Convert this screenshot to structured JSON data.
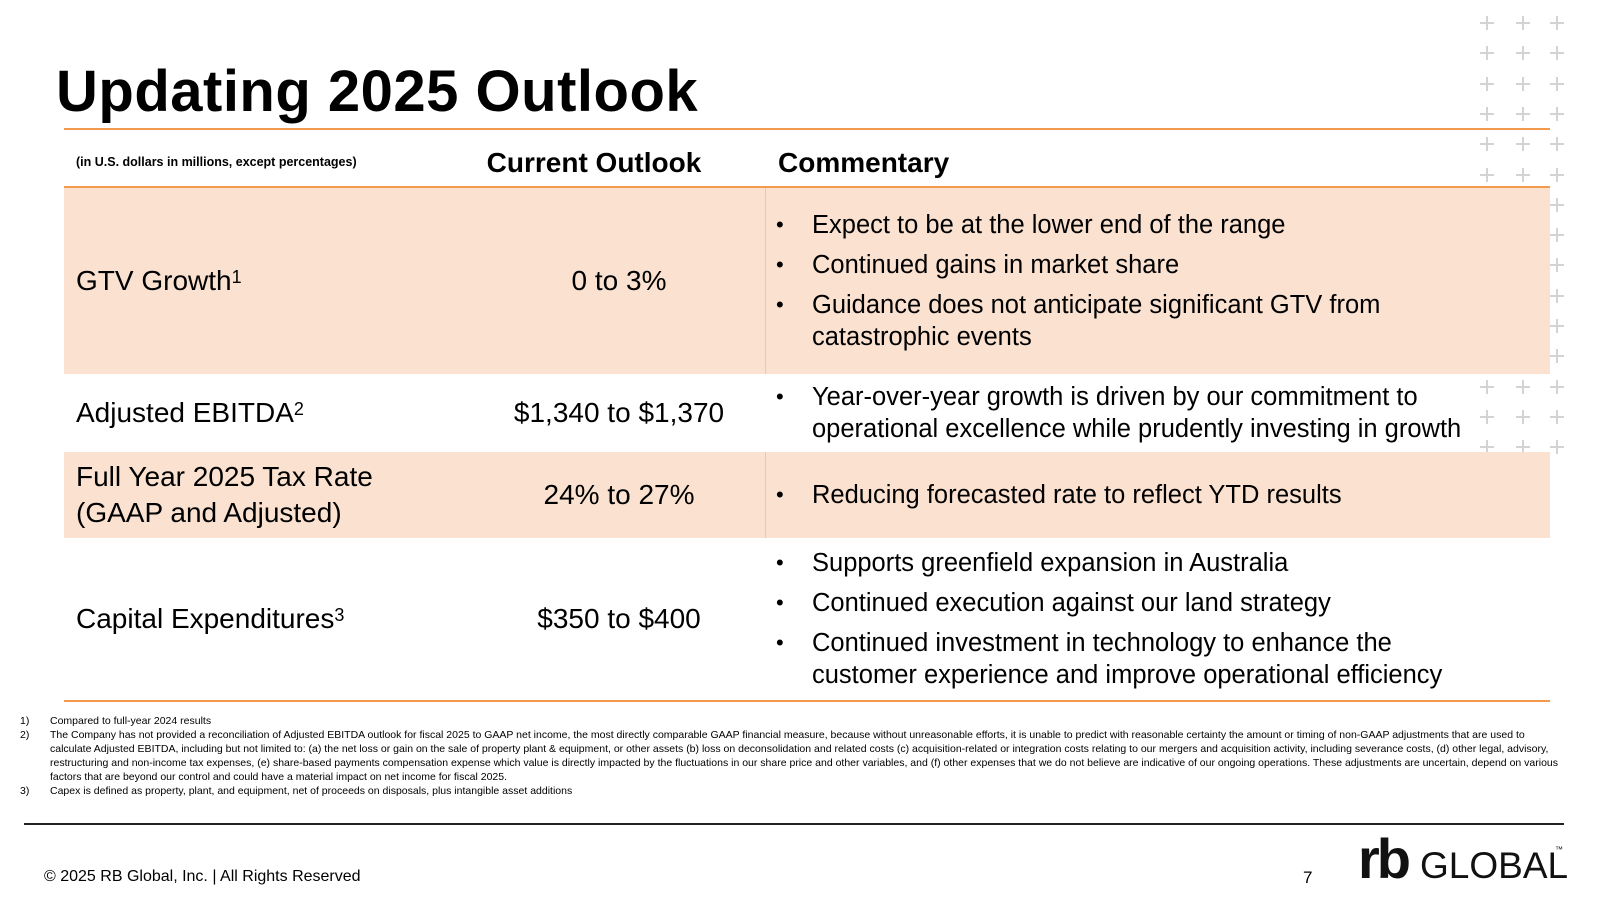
{
  "title": "Updating 2025 Outlook",
  "table": {
    "units_note": "(in U.S. dollars in millions, except percentages)",
    "col_outlook": "Current Outlook",
    "col_commentary": "Commentary",
    "rows": [
      {
        "metric": "GTV Growth",
        "footnote": "1",
        "outlook": "0 to 3%",
        "commentary": [
          "Expect to be at the lower end of the range",
          "Continued gains in market share",
          "Guidance does not anticipate significant GTV from catastrophic events"
        ]
      },
      {
        "metric": "Adjusted EBITDA",
        "footnote": "2",
        "outlook": "$1,340 to $1,370",
        "commentary": [
          "Year-over-year growth is driven by our commitment to operational excellence while prudently investing in growth"
        ]
      },
      {
        "metric": "Full Year 2025 Tax Rate (GAAP and Adjusted)",
        "footnote": "",
        "outlook": "24% to 27%",
        "commentary": [
          "Reducing forecasted rate to reflect YTD results"
        ]
      },
      {
        "metric": "Capital Expenditures",
        "footnote": "3",
        "outlook": "$350 to $400",
        "commentary": [
          "Supports greenfield expansion in Australia",
          "Continued execution against our land strategy",
          "Continued investment in technology to enhance the customer experience and improve operational efficiency"
        ]
      }
    ]
  },
  "footnotes": [
    {
      "num": "1)",
      "text": "Compared to full-year 2024 results"
    },
    {
      "num": "2)",
      "text": "The Company has not provided a reconciliation of Adjusted EBITDA outlook for fiscal 2025 to GAAP net income, the most directly comparable GAAP financial measure, because without unreasonable efforts, it is unable to predict with reasonable certainty the amount or timing of non-GAAP adjustments that are used to calculate Adjusted EBITDA, including but not limited to: (a) the net loss or gain on the sale of property plant & equipment, or other assets (b) loss on deconsolidation and related costs (c) acquisition-related or integration costs relating to our mergers and acquisition activity, including severance costs, (d) other legal, advisory, restructuring and non-income tax expenses, (e) share-based payments compensation expense which value is directly impacted by the fluctuations in our share price and other variables, and (f) other expenses that we do not believe are indicative of our ongoing operations. These adjustments are uncertain, depend on various factors that are beyond our control and could have a material impact on net income for fiscal 2025."
    },
    {
      "num": "3)",
      "text": "Capex is defined as property, plant, and equipment, net of proceeds on disposals, plus intangible asset additions"
    }
  ],
  "footer": {
    "copyright": "© 2025 RB Global, Inc. | All Rights Reserved",
    "page_number": "7",
    "logo_text": "rb GLOBAL",
    "logo_mark": "rb",
    "logo_word": "GLOBAL",
    "logo_tm": "™"
  },
  "colors": {
    "accent_orange": "#f39a4f",
    "row_shade": "#fae1d0",
    "plus_grey": "#d3d3d3"
  }
}
